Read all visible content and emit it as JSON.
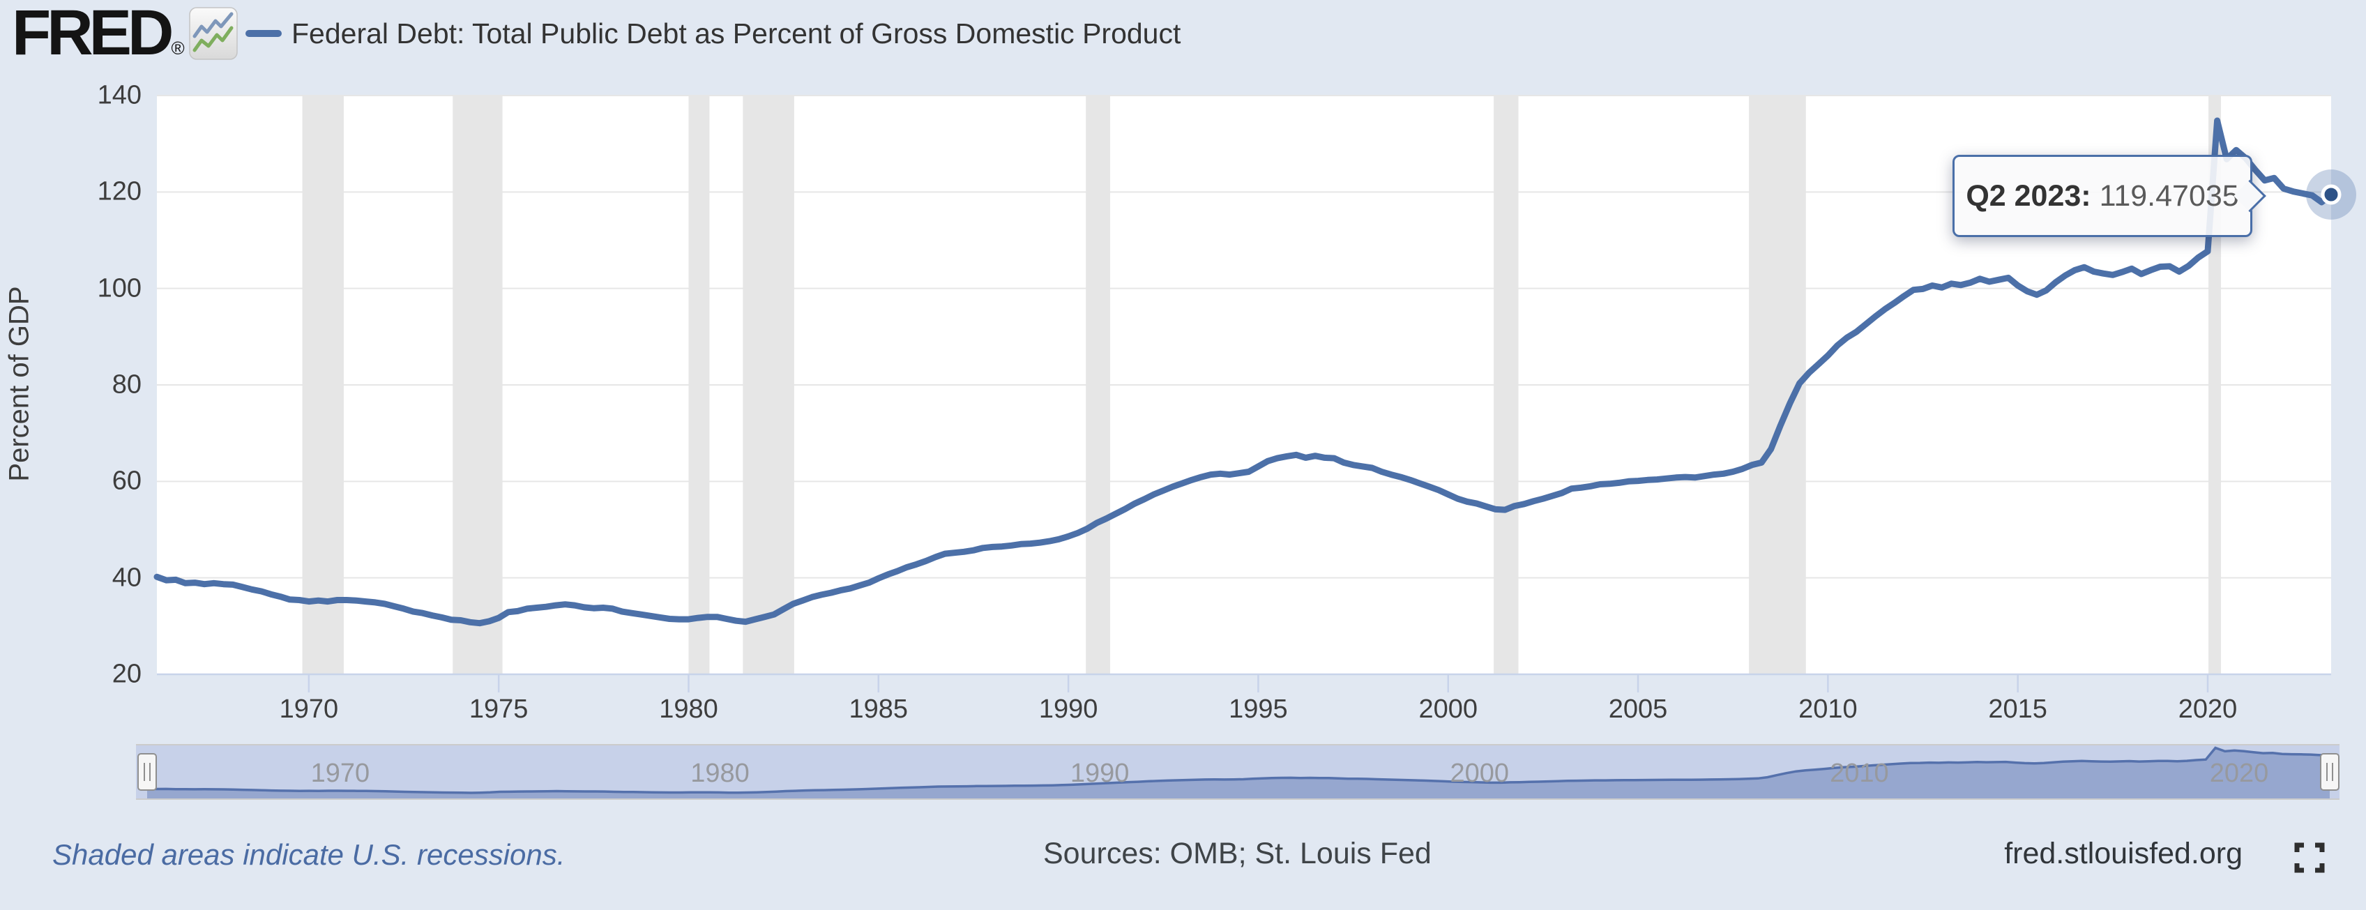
{
  "header": {
    "logo_text": "FRED",
    "logo_registered": "®",
    "series_legend": "Federal Debt: Total Public Debt as Percent of Gross Domestic Product"
  },
  "tooltip": {
    "label": "Q2 2023:",
    "value": "119.47035"
  },
  "y_axis": {
    "title": "Percent of GDP",
    "ticks": [
      140,
      120,
      100,
      80,
      60,
      40,
      20
    ]
  },
  "x_axis": {
    "ticks": [
      1970,
      1975,
      1980,
      1985,
      1990,
      1995,
      2000,
      2005,
      2010,
      2015,
      2020
    ]
  },
  "navigator": {
    "labels": [
      1970,
      1980,
      1990,
      2000,
      2010,
      2020
    ]
  },
  "footer": {
    "note": "Shaded areas indicate U.S. recessions.",
    "sources": "Sources: OMB; St. Louis Fed",
    "site": "fred.stlouisfed.org"
  },
  "colors": {
    "page_bg": "#e1e8f2",
    "plot_bg": "#ffffff",
    "series_line": "#4c70a8",
    "gridline": "#e6e6e6",
    "recession_band": "#e6e6e6",
    "axis_line": "#c8d3ea",
    "tick_label": "#3d3d3d",
    "nav_bg": "#c7d1e9",
    "nav_area_fill": "#96a7cf",
    "nav_line": "#5571ac",
    "nav_border": "#cbcbcb",
    "marker_dot": "#2e5286",
    "marker_halo": "rgba(76,112,168,0.30)",
    "tooltip_border": "#4a6fa8"
  },
  "chart_data": {
    "type": "line",
    "title": "Federal Debt: Total Public Debt as Percent of Gross Domestic Product",
    "xlabel": "",
    "ylabel": "Percent of GDP",
    "ylim": [
      20,
      140
    ],
    "xlim": [
      1966.0,
      2023.25
    ],
    "grid": "horizontal",
    "legend_position": "top-left",
    "frequency": "quarterly",
    "x_start": 1966.0,
    "x_step_years": 0.25,
    "x_end": 2023.25,
    "values": [
      40.2,
      39.5,
      39.6,
      38.9,
      39.0,
      38.7,
      38.9,
      38.7,
      38.6,
      38.1,
      37.6,
      37.2,
      36.6,
      36.1,
      35.5,
      35.4,
      35.1,
      35.3,
      35.1,
      35.4,
      35.4,
      35.3,
      35.1,
      34.9,
      34.6,
      34.1,
      33.6,
      33.0,
      32.7,
      32.2,
      31.8,
      31.3,
      31.2,
      30.8,
      30.6,
      31.0,
      31.7,
      32.9,
      33.1,
      33.6,
      33.8,
      34.0,
      34.3,
      34.5,
      34.3,
      33.9,
      33.7,
      33.8,
      33.6,
      33.0,
      32.7,
      32.4,
      32.1,
      31.8,
      31.5,
      31.4,
      31.4,
      31.7,
      31.9,
      31.9,
      31.5,
      31.1,
      30.9,
      31.4,
      31.9,
      32.4,
      33.5,
      34.6,
      35.3,
      36.0,
      36.5,
      36.9,
      37.4,
      37.8,
      38.4,
      39.0,
      39.9,
      40.7,
      41.4,
      42.2,
      42.8,
      43.5,
      44.3,
      45.0,
      45.2,
      45.4,
      45.7,
      46.2,
      46.4,
      46.5,
      46.7,
      47.0,
      47.1,
      47.3,
      47.6,
      48.0,
      48.6,
      49.3,
      50.2,
      51.4,
      52.3,
      53.3,
      54.3,
      55.4,
      56.3,
      57.3,
      58.1,
      58.9,
      59.6,
      60.3,
      60.9,
      61.4,
      61.6,
      61.4,
      61.7,
      62.0,
      63.1,
      64.2,
      64.8,
      65.2,
      65.5,
      64.9,
      65.3,
      64.9,
      64.8,
      63.9,
      63.4,
      63.1,
      62.8,
      62.0,
      61.4,
      60.9,
      60.3,
      59.6,
      58.9,
      58.2,
      57.3,
      56.4,
      55.8,
      55.4,
      54.8,
      54.2,
      54.1,
      54.9,
      55.3,
      55.9,
      56.4,
      57.0,
      57.6,
      58.5,
      58.7,
      59.0,
      59.4,
      59.5,
      59.7,
      60.0,
      60.1,
      60.3,
      60.4,
      60.6,
      60.8,
      60.9,
      60.8,
      61.1,
      61.4,
      61.6,
      62.0,
      62.6,
      63.4,
      63.9,
      66.7,
      71.6,
      76.2,
      80.3,
      82.5,
      84.3,
      86.1,
      88.2,
      89.8,
      91.0,
      92.6,
      94.2,
      95.7,
      97.0,
      98.4,
      99.7,
      99.9,
      100.6,
      100.2,
      101.0,
      100.7,
      101.2,
      102.0,
      101.4,
      101.8,
      102.2,
      100.6,
      99.4,
      98.7,
      99.6,
      101.3,
      102.7,
      103.8,
      104.4,
      103.5,
      103.1,
      102.8,
      103.4,
      104.1,
      103.0,
      103.8,
      104.5,
      104.6,
      103.5,
      104.7,
      106.4,
      107.7,
      134.8,
      126.8,
      128.7,
      127.0,
      124.6,
      122.4,
      122.9,
      120.7,
      120.1,
      119.7,
      119.3,
      117.9,
      119.47035
    ],
    "recessions": [
      [
        1969.83,
        1970.92
      ],
      [
        1973.79,
        1975.1
      ],
      [
        1980.0,
        1980.55
      ],
      [
        1981.43,
        1982.78
      ],
      [
        1990.46,
        1991.1
      ],
      [
        2001.2,
        2001.85
      ],
      [
        2007.92,
        2009.42
      ],
      [
        2020.02,
        2020.35
      ]
    ],
    "last_point": {
      "period": "Q2 2023",
      "value": 119.47035
    },
    "annotations": [
      "Q2 2023: 119.47035"
    ]
  }
}
